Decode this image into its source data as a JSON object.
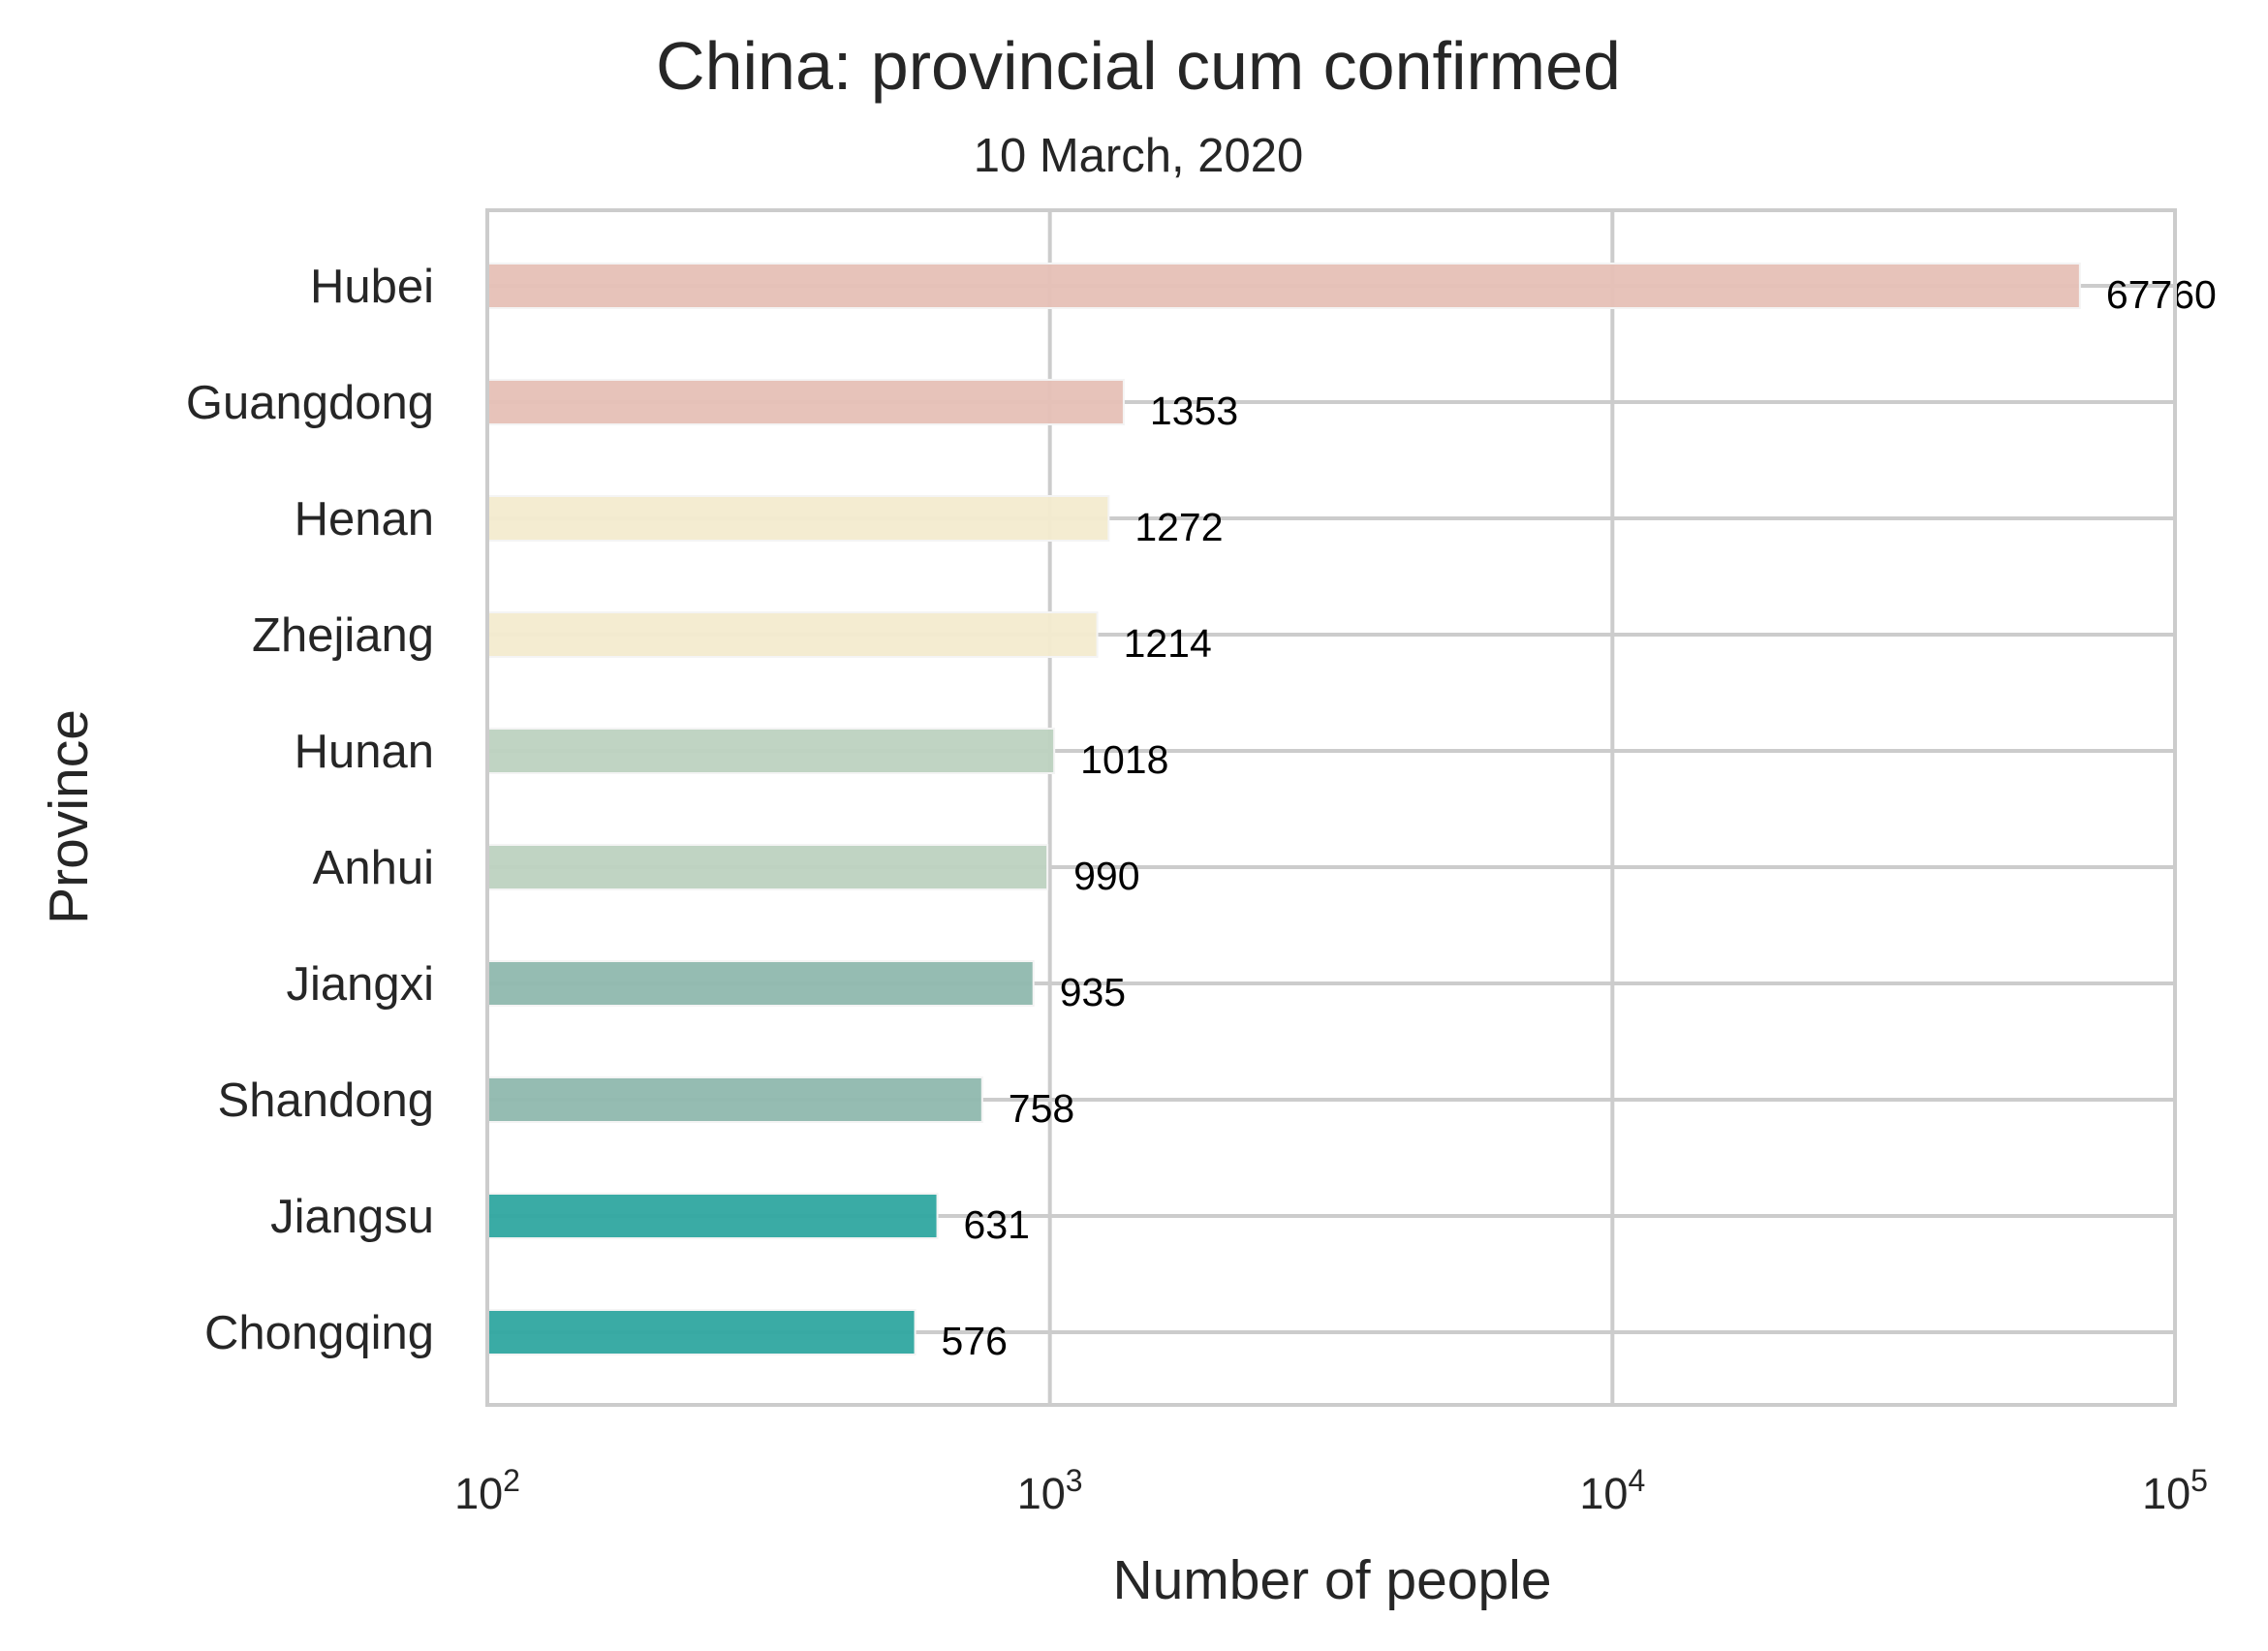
{
  "chart_data": {
    "type": "bar",
    "orientation": "horizontal",
    "title": "China: provincial cum confirmed",
    "subtitle": "10 March, 2020",
    "xlabel": "Number of people",
    "ylabel": "Province",
    "xscale": "log",
    "xlim": [
      100,
      100000
    ],
    "x_ticks": [
      {
        "base": "10",
        "exp": "2",
        "value": 100
      },
      {
        "base": "10",
        "exp": "3",
        "value": 1000
      },
      {
        "base": "10",
        "exp": "4",
        "value": 10000
      },
      {
        "base": "10",
        "exp": "5",
        "value": 100000
      }
    ],
    "grid": true,
    "categories": [
      "Hubei",
      "Guangdong",
      "Henan",
      "Zhejiang",
      "Hunan",
      "Anhui",
      "Jiangxi",
      "Shandong",
      "Jiangsu",
      "Chongqing"
    ],
    "values": [
      67760,
      1353,
      1272,
      1214,
      1018,
      990,
      935,
      758,
      631,
      576
    ],
    "value_labels": [
      "67760",
      "1353",
      "1272",
      "1214",
      "1018",
      "990",
      "935",
      "758",
      "631",
      "576"
    ],
    "colors": [
      "#e6c0b6",
      "#e6c0b6",
      "#f3ebcf",
      "#f3ebcf",
      "#bdd2c0",
      "#bdd2c0",
      "#8fb8ae",
      "#8fb8ae",
      "#2fa6a0",
      "#2fa6a0"
    ]
  }
}
